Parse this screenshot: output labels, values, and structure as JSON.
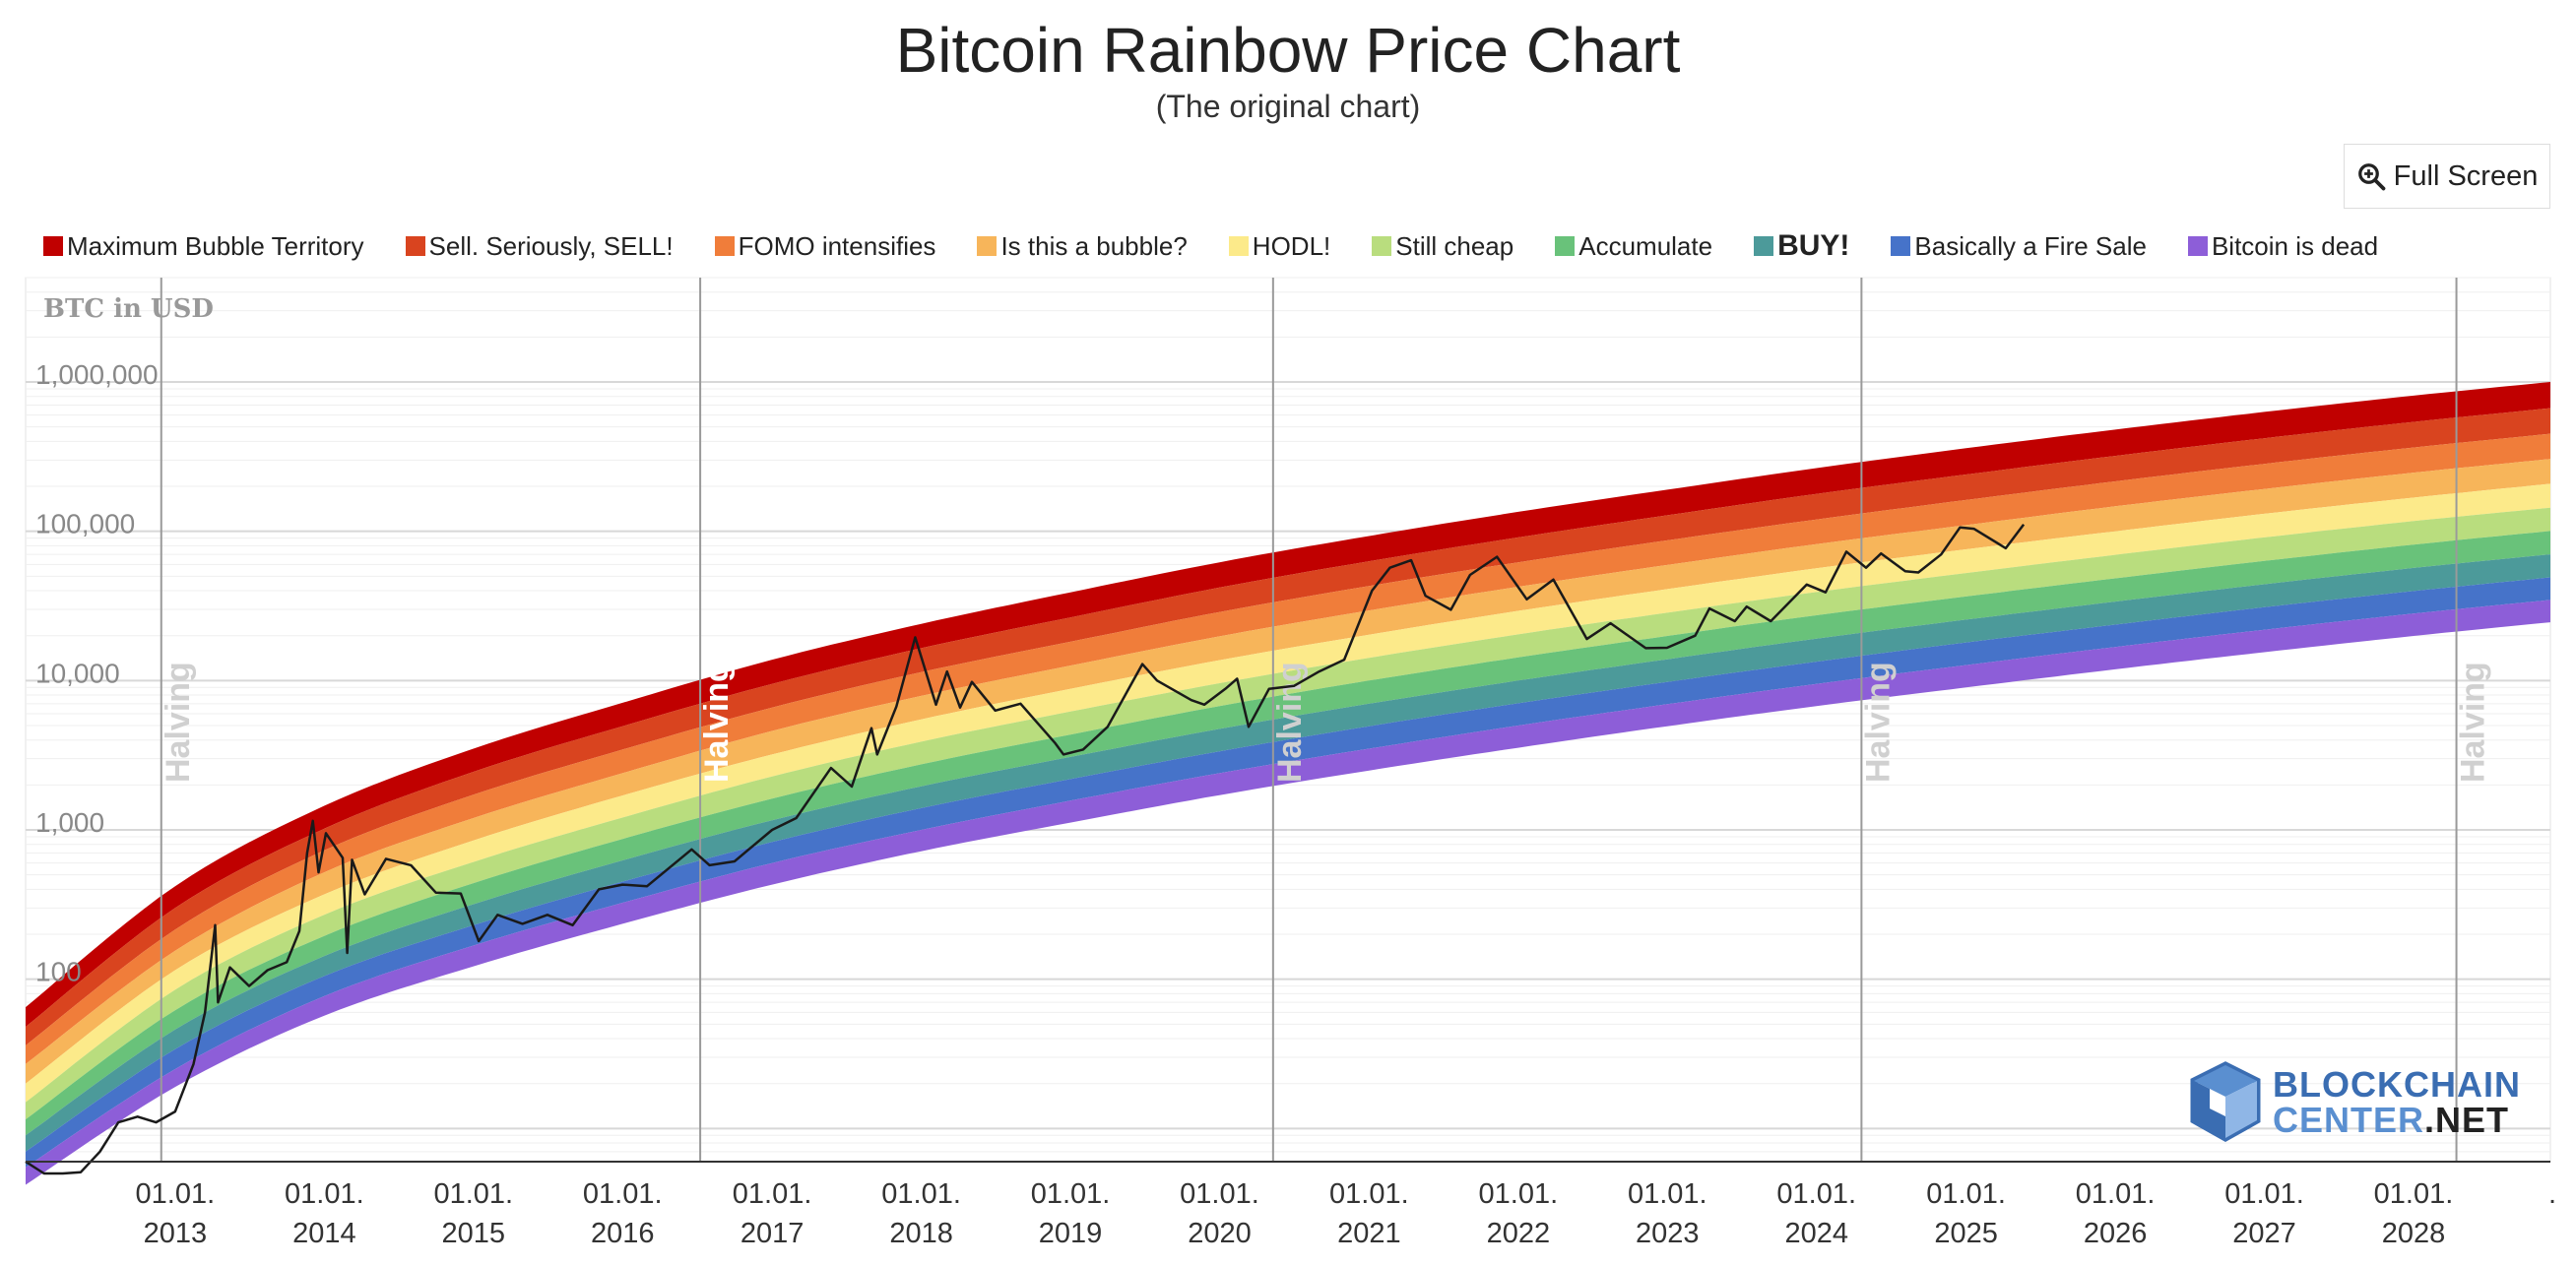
{
  "header": {
    "title": "Bitcoin Rainbow Price Chart",
    "subtitle": "(The original chart)"
  },
  "toolbar": {
    "fullscreen_label": "Full Screen",
    "fullscreen_icon": "zoom-in-icon"
  },
  "logo": {
    "line1": "BLOCKCHAIN",
    "line2a": "CENTER",
    "line2b": ".NET"
  },
  "colors": {
    "background": "#ffffff",
    "price_line": "#1a1a1a",
    "halving_line": "#9a9a9a"
  },
  "chart_data": {
    "type": "area",
    "title": "Bitcoin Rainbow Price Chart",
    "subtitle": "(The original chart)",
    "ylabel": "BTC in USD",
    "yscale": "log",
    "ylim": [
      6,
      5000000
    ],
    "xlim": [
      "2012-01-01",
      "2028-12-01"
    ],
    "grid": true,
    "legend_position": "top",
    "y_ticks": [
      {
        "value": 100,
        "label": "100"
      },
      {
        "value": 1000,
        "label": "1,000"
      },
      {
        "value": 10000,
        "label": "10,000"
      },
      {
        "value": 100000,
        "label": "100,000"
      },
      {
        "value": 1000000,
        "label": "1,000,000"
      }
    ],
    "x_ticks": [
      {
        "value": "2013-01-01",
        "line1": "01.01.",
        "line2": "2013"
      },
      {
        "value": "2014-01-01",
        "line1": "01.01.",
        "line2": "2014"
      },
      {
        "value": "2015-01-01",
        "line1": "01.01.",
        "line2": "2015"
      },
      {
        "value": "2016-01-01",
        "line1": "01.01.",
        "line2": "2016"
      },
      {
        "value": "2017-01-01",
        "line1": "01.01.",
        "line2": "2017"
      },
      {
        "value": "2018-01-01",
        "line1": "01.01.",
        "line2": "2018"
      },
      {
        "value": "2019-01-01",
        "line1": "01.01.",
        "line2": "2019"
      },
      {
        "value": "2020-01-01",
        "line1": "01.01.",
        "line2": "2020"
      },
      {
        "value": "2021-01-01",
        "line1": "01.01.",
        "line2": "2021"
      },
      {
        "value": "2022-01-01",
        "line1": "01.01.",
        "line2": "2022"
      },
      {
        "value": "2023-01-01",
        "line1": "01.01.",
        "line2": "2023"
      },
      {
        "value": "2024-01-01",
        "line1": "01.01.",
        "line2": "2024"
      },
      {
        "value": "2025-01-01",
        "line1": "01.01.",
        "line2": "2025"
      },
      {
        "value": "2026-01-01",
        "line1": "01.01.",
        "line2": "2026"
      },
      {
        "value": "2027-01-01",
        "line1": "01.01.",
        "line2": "2027"
      },
      {
        "value": "2028-01-01",
        "line1": "01.01.",
        "line2": "2028"
      },
      {
        "value": "2029-01-01",
        "line1": ".",
        "line2": ""
      }
    ],
    "halvings": [
      {
        "date": "2012-11-28",
        "label": "Halving",
        "emphasis": false
      },
      {
        "date": "2016-07-09",
        "label": "Halving",
        "emphasis": true
      },
      {
        "date": "2020-05-11",
        "label": "Halving",
        "emphasis": false
      },
      {
        "date": "2024-04-20",
        "label": "Halving",
        "emphasis": false
      },
      {
        "date": "2028-04-15",
        "label": "Halving",
        "emphasis": false
      }
    ],
    "bands": [
      {
        "name": "Maximum Bubble Territory",
        "color": "#c00000",
        "style": "normal"
      },
      {
        "name": "Sell. Seriously, SELL!",
        "color": "#d9441f",
        "style": "normal"
      },
      {
        "name": "FOMO intensifies",
        "color": "#f07d3a",
        "style": "normal"
      },
      {
        "name": "Is this a bubble?",
        "color": "#f7b55a",
        "style": "normal"
      },
      {
        "name": "HODL!",
        "color": "#fcea8a",
        "style": "normal"
      },
      {
        "name": "Still cheap",
        "color": "#b9dd7e",
        "style": "normal"
      },
      {
        "name": "Accumulate",
        "color": "#69c27a",
        "style": "normal"
      },
      {
        "name": "BUY!",
        "color": "#4c9a9a",
        "style": "bold"
      },
      {
        "name": "Basically a Fire Sale",
        "color": "#4673c9",
        "style": "normal"
      },
      {
        "name": "Bitcoin is dead",
        "color": "#8d5ed8",
        "style": "normal"
      }
    ],
    "band_boundaries": [
      {
        "date": "2012-01-01",
        "values": [
          65,
          48,
          36,
          27,
          20,
          15,
          11.5,
          9,
          7,
          5.5,
          4.2
        ]
      },
      {
        "date": "2013-01-01",
        "values": [
          420,
          300,
          215,
          155,
          115,
          85,
          62,
          46,
          34,
          25,
          19
        ]
      },
      {
        "date": "2014-01-01",
        "values": [
          1450,
          1020,
          730,
          520,
          370,
          270,
          195,
          143,
          105,
          77,
          57
        ]
      },
      {
        "date": "2015-01-01",
        "values": [
          3500,
          2450,
          1720,
          1200,
          850,
          610,
          440,
          318,
          230,
          168,
          122
        ]
      },
      {
        "date": "2016-01-01",
        "values": [
          7100,
          4950,
          3450,
          2400,
          1700,
          1210,
          870,
          625,
          450,
          325,
          235
        ]
      },
      {
        "date": "2017-01-01",
        "values": [
          13800,
          9500,
          6600,
          4600,
          3200,
          2280,
          1620,
          1160,
          830,
          600,
          430
        ]
      },
      {
        "date": "2018-01-01",
        "values": [
          24000,
          16500,
          11400,
          7900,
          5500,
          3900,
          2750,
          1960,
          1400,
          1000,
          720
        ]
      },
      {
        "date": "2019-01-01",
        "values": [
          39000,
          26500,
          18200,
          12600,
          8800,
          6200,
          4350,
          3080,
          2190,
          1570,
          1120
        ]
      },
      {
        "date": "2020-01-01",
        "values": [
          62000,
          42000,
          28800,
          19800,
          13700,
          9600,
          6750,
          4750,
          3360,
          2400,
          1710
        ]
      },
      {
        "date": "2021-01-01",
        "values": [
          93000,
          63000,
          43000,
          29500,
          20300,
          14200,
          10000,
          7000,
          4950,
          3500,
          2500
        ]
      },
      {
        "date": "2022-01-01",
        "values": [
          135000,
          91000,
          62000,
          42500,
          29300,
          20400,
          14300,
          10000,
          7050,
          5000,
          3550
        ]
      },
      {
        "date": "2023-01-01",
        "values": [
          190000,
          128000,
          87000,
          59500,
          41000,
          28500,
          19900,
          13900,
          9800,
          6950,
          4950
        ]
      },
      {
        "date": "2024-01-01",
        "values": [
          265000,
          178000,
          120000,
          82000,
          56500,
          39200,
          27400,
          19100,
          13400,
          9500,
          6750
        ]
      },
      {
        "date": "2025-01-01",
        "values": [
          360000,
          240000,
          162000,
          110000,
          75700,
          52500,
          36600,
          25600,
          18000,
          12700,
          9000
        ]
      },
      {
        "date": "2026-01-01",
        "values": [
          480000,
          320000,
          216000,
          147000,
          100000,
          69500,
          48400,
          33800,
          23700,
          16800,
          11900
        ]
      },
      {
        "date": "2027-01-01",
        "values": [
          630000,
          420000,
          283000,
          192000,
          131000,
          91000,
          63300,
          44200,
          31000,
          21900,
          15500
        ]
      },
      {
        "date": "2028-01-01",
        "values": [
          810000,
          540000,
          364000,
          247000,
          168000,
          117000,
          81400,
          56800,
          39800,
          28100,
          19900
        ]
      },
      {
        "date": "2028-12-01",
        "values": [
          1000000,
          668000,
          450000,
          305000,
          208000,
          144000,
          100500,
          70100,
          49100,
          34700,
          24600
        ]
      }
    ],
    "series": [
      {
        "name": "BTC price",
        "points": [
          [
            "2012-01-01",
            6
          ],
          [
            "2012-02-15",
            5
          ],
          [
            "2012-04-01",
            5
          ],
          [
            "2012-05-15",
            5.1
          ],
          [
            "2012-07-01",
            7
          ],
          [
            "2012-08-15",
            11
          ],
          [
            "2012-10-01",
            12
          ],
          [
            "2012-11-15",
            11
          ],
          [
            "2013-01-01",
            13
          ],
          [
            "2013-02-15",
            27
          ],
          [
            "2013-03-15",
            60
          ],
          [
            "2013-04-09",
            230
          ],
          [
            "2013-04-16",
            70
          ],
          [
            "2013-05-15",
            120
          ],
          [
            "2013-07-01",
            90
          ],
          [
            "2013-08-15",
            115
          ],
          [
            "2013-10-01",
            130
          ],
          [
            "2013-11-01",
            210
          ],
          [
            "2013-11-20",
            700
          ],
          [
            "2013-12-04",
            1150
          ],
          [
            "2013-12-18",
            520
          ],
          [
            "2014-01-05",
            950
          ],
          [
            "2014-02-15",
            650
          ],
          [
            "2014-02-26",
            150
          ],
          [
            "2014-03-10",
            630
          ],
          [
            "2014-04-10",
            370
          ],
          [
            "2014-06-01",
            640
          ],
          [
            "2014-08-01",
            580
          ],
          [
            "2014-10-01",
            380
          ],
          [
            "2014-12-01",
            375
          ],
          [
            "2015-01-14",
            180
          ],
          [
            "2015-03-01",
            270
          ],
          [
            "2015-05-01",
            235
          ],
          [
            "2015-07-01",
            270
          ],
          [
            "2015-09-01",
            230
          ],
          [
            "2015-11-04",
            400
          ],
          [
            "2016-01-01",
            430
          ],
          [
            "2016-03-01",
            420
          ],
          [
            "2016-06-18",
            740
          ],
          [
            "2016-08-01",
            580
          ],
          [
            "2016-10-01",
            615
          ],
          [
            "2017-01-01",
            1000
          ],
          [
            "2017-03-01",
            1200
          ],
          [
            "2017-05-25",
            2600
          ],
          [
            "2017-07-15",
            1950
          ],
          [
            "2017-09-01",
            4800
          ],
          [
            "2017-09-15",
            3200
          ],
          [
            "2017-11-01",
            6700
          ],
          [
            "2017-12-17",
            19500
          ],
          [
            "2018-02-06",
            6900
          ],
          [
            "2018-03-05",
            11500
          ],
          [
            "2018-04-06",
            6600
          ],
          [
            "2018-05-05",
            9800
          ],
          [
            "2018-07-01",
            6300
          ],
          [
            "2018-09-01",
            7000
          ],
          [
            "2018-11-25",
            3800
          ],
          [
            "2018-12-15",
            3200
          ],
          [
            "2019-02-01",
            3450
          ],
          [
            "2019-04-02",
            4900
          ],
          [
            "2019-06-26",
            12900
          ],
          [
            "2019-08-01",
            10000
          ],
          [
            "2019-10-24",
            7400
          ],
          [
            "2019-11-25",
            6900
          ],
          [
            "2020-01-15",
            8800
          ],
          [
            "2020-02-13",
            10300
          ],
          [
            "2020-03-12",
            4900
          ],
          [
            "2020-05-01",
            8800
          ],
          [
            "2020-07-01",
            9200
          ],
          [
            "2020-09-01",
            11500
          ],
          [
            "2020-11-01",
            13800
          ],
          [
            "2021-01-08",
            40000
          ],
          [
            "2021-02-21",
            57000
          ],
          [
            "2021-04-14",
            64000
          ],
          [
            "2021-05-19",
            37000
          ],
          [
            "2021-07-20",
            29800
          ],
          [
            "2021-09-05",
            51000
          ],
          [
            "2021-11-10",
            67500
          ],
          [
            "2022-01-22",
            35000
          ],
          [
            "2022-03-28",
            47500
          ],
          [
            "2022-06-18",
            19000
          ],
          [
            "2022-08-15",
            24200
          ],
          [
            "2022-11-09",
            16500
          ],
          [
            "2022-12-31",
            16600
          ],
          [
            "2023-03-10",
            20000
          ],
          [
            "2023-04-14",
            30400
          ],
          [
            "2023-06-15",
            25000
          ],
          [
            "2023-07-14",
            31300
          ],
          [
            "2023-09-11",
            25000
          ],
          [
            "2023-12-08",
            44000
          ],
          [
            "2024-01-23",
            39000
          ],
          [
            "2024-03-14",
            73000
          ],
          [
            "2024-05-01",
            57000
          ],
          [
            "2024-06-07",
            71000
          ],
          [
            "2024-08-05",
            54000
          ],
          [
            "2024-09-06",
            53000
          ],
          [
            "2024-11-01",
            70000
          ],
          [
            "2024-12-17",
            106000
          ],
          [
            "2025-01-20",
            104000
          ],
          [
            "2025-04-08",
            77000
          ],
          [
            "2025-05-22",
            111000
          ]
        ]
      }
    ]
  }
}
